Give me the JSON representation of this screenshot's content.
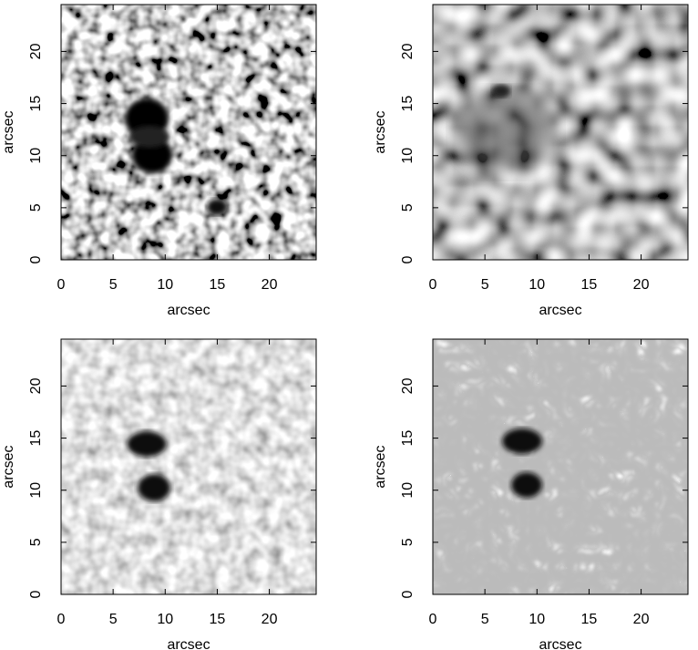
{
  "chart_data": [
    {
      "type": "image",
      "xlabel": "arcsec",
      "ylabel": "arcsec",
      "xlim": [
        0,
        24.5
      ],
      "ylim": [
        0,
        24.5
      ],
      "xticks": [
        0,
        5,
        10,
        15,
        20
      ],
      "yticks": [
        0,
        5,
        10,
        15,
        20
      ]
    },
    {
      "type": "image",
      "xlabel": "arcsec",
      "ylabel": "arcsec",
      "xlim": [
        0,
        24.5
      ],
      "ylim": [
        0,
        24.5
      ],
      "xticks": [
        0,
        5,
        10,
        15,
        20
      ],
      "yticks": [
        0,
        5,
        10,
        15,
        20
      ]
    },
    {
      "type": "image",
      "xlabel": "arcsec",
      "ylabel": "arcsec",
      "xlim": [
        0,
        24.5
      ],
      "ylim": [
        0,
        24.5
      ],
      "xticks": [
        0,
        5,
        10,
        15,
        20
      ],
      "yticks": [
        0,
        5,
        10,
        15,
        20
      ]
    },
    {
      "type": "image",
      "xlabel": "arcsec",
      "ylabel": "arcsec",
      "xlim": [
        0,
        24.5
      ],
      "ylim": [
        0,
        24.5
      ],
      "xticks": [
        0,
        5,
        10,
        15,
        20
      ],
      "yticks": [
        0,
        5,
        10,
        15,
        20
      ]
    }
  ]
}
